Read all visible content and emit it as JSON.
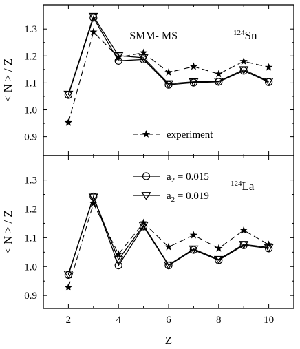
{
  "chart_data": [
    {
      "type": "line",
      "panel": "top",
      "annotation_model": "SMM- MS",
      "annotation_nucleus": {
        "mass": "124",
        "symbol": "Sn"
      },
      "ylabel": "< N > / Z",
      "xlabel": "",
      "xlim": [
        1,
        11
      ],
      "ylim": [
        0.83,
        1.39
      ],
      "yticks": [
        "0.9",
        "1.0",
        "1.1",
        "1.2",
        "1.3"
      ],
      "x": [
        2,
        3,
        4,
        5,
        6,
        7,
        8,
        9,
        10
      ],
      "legend": [
        {
          "series": "experiment",
          "label": "experiment"
        }
      ],
      "series": [
        {
          "name": "experiment",
          "marker": "star",
          "style": "dashed",
          "values": [
            0.953,
            1.289,
            1.195,
            1.212,
            1.139,
            1.161,
            1.133,
            1.18,
            1.158
          ]
        },
        {
          "name": "",
          "marker": "circle",
          "style": "solid",
          "values": [
            1.055,
            1.342,
            1.182,
            1.187,
            1.093,
            1.101,
            1.104,
            1.145,
            1.103
          ]
        },
        {
          "name": "",
          "marker": "triangle",
          "style": "solid",
          "values": [
            1.058,
            1.347,
            1.201,
            1.193,
            1.097,
            1.104,
            1.106,
            1.149,
            1.106
          ]
        }
      ]
    },
    {
      "type": "line",
      "panel": "bottom",
      "annotation_nucleus": {
        "mass": "124",
        "symbol": "La"
      },
      "ylabel": "< N > / Z",
      "xlabel": "Z",
      "xlim": [
        1,
        11
      ],
      "ylim": [
        0.855,
        1.385
      ],
      "yticks": [
        "0.9",
        "1.0",
        "1.1",
        "1.2",
        "1.3"
      ],
      "xticks": [
        "2",
        "4",
        "6",
        "8",
        "10"
      ],
      "x": [
        2,
        3,
        4,
        5,
        6,
        7,
        8,
        9,
        10
      ],
      "legend": [
        {
          "series": "a2 = 0.015",
          "label": "a",
          "sub": "2",
          "rest": " = 0.015",
          "marker": "circle"
        },
        {
          "series": "a2 = 0.019",
          "label": "a",
          "sub": "2",
          "rest": " = 0.019",
          "marker": "triangle"
        }
      ],
      "series": [
        {
          "name": "",
          "marker": "star",
          "style": "dashed",
          "values": [
            0.928,
            1.219,
            1.043,
            1.152,
            1.068,
            1.109,
            1.063,
            1.126,
            1.076
          ]
        },
        {
          "name": "a2 = 0.015",
          "marker": "circle",
          "style": "solid",
          "values": [
            0.971,
            1.243,
            1.004,
            1.139,
            1.004,
            1.058,
            1.022,
            1.074,
            1.063
          ]
        },
        {
          "name": "a2 = 0.019",
          "marker": "triangle",
          "style": "solid",
          "values": [
            0.974,
            1.241,
            1.024,
            1.143,
            1.006,
            1.061,
            1.025,
            1.077,
            1.066
          ]
        }
      ]
    }
  ]
}
